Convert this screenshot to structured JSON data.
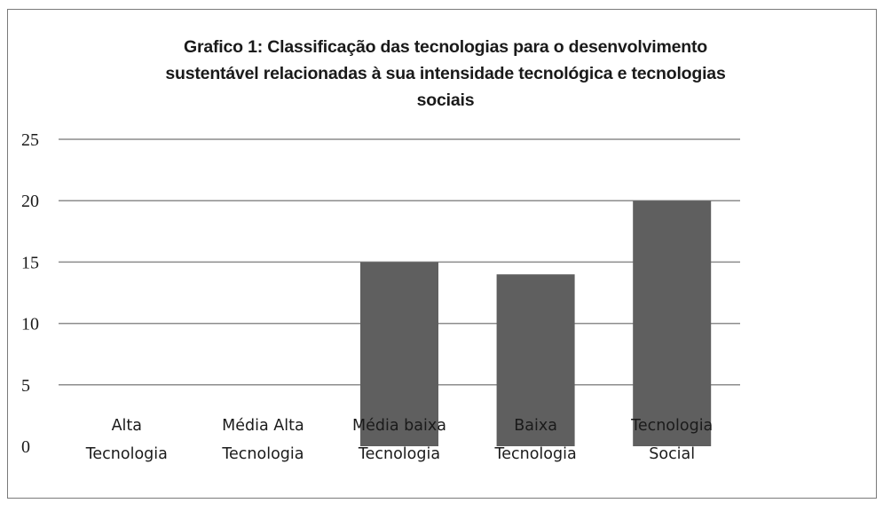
{
  "chart_data": {
    "type": "bar",
    "title_lines": [
      "Grafico 1: Classificação  das tecnologias para o desenvolvimento",
      "sustentável relacionadas à sua intensidade tecnológica e tecnologias",
      "sociais"
    ],
    "categories": [
      [
        "Alta",
        "Tecnologia"
      ],
      [
        "Média Alta",
        "Tecnologia"
      ],
      [
        "Média baixa",
        "Tecnologia"
      ],
      [
        "Baixa",
        "Tecnologia"
      ],
      [
        "Tecnologia",
        "Social"
      ]
    ],
    "values": [
      0,
      0,
      15,
      14,
      20
    ],
    "y_ticks": [
      0,
      5,
      10,
      15,
      20,
      25
    ],
    "ylim": [
      0,
      25
    ],
    "grid": true,
    "bar_color": "#5f5f5f",
    "grid_color": "#8c8c8c"
  }
}
